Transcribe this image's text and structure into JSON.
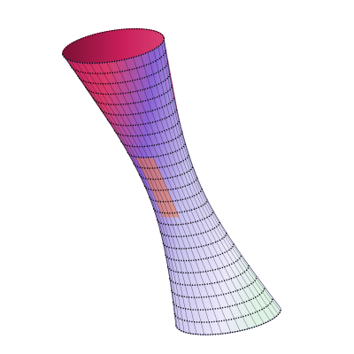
{
  "figure": {
    "surface": "hyperboloid-of-one-sheet",
    "mesh_style": "dotted-black",
    "shading": "mathematica-default-lighting",
    "colors": {
      "background": "#ffffff",
      "shade_magenta": "#c81e5a",
      "shade_orange": "#f07a46",
      "shade_violet": "#8a62d4",
      "shade_lavender": "#e6e2fa",
      "shade_mint": "#dff2e6",
      "inner_dark": "#b01846",
      "mesh": "#000000"
    }
  }
}
